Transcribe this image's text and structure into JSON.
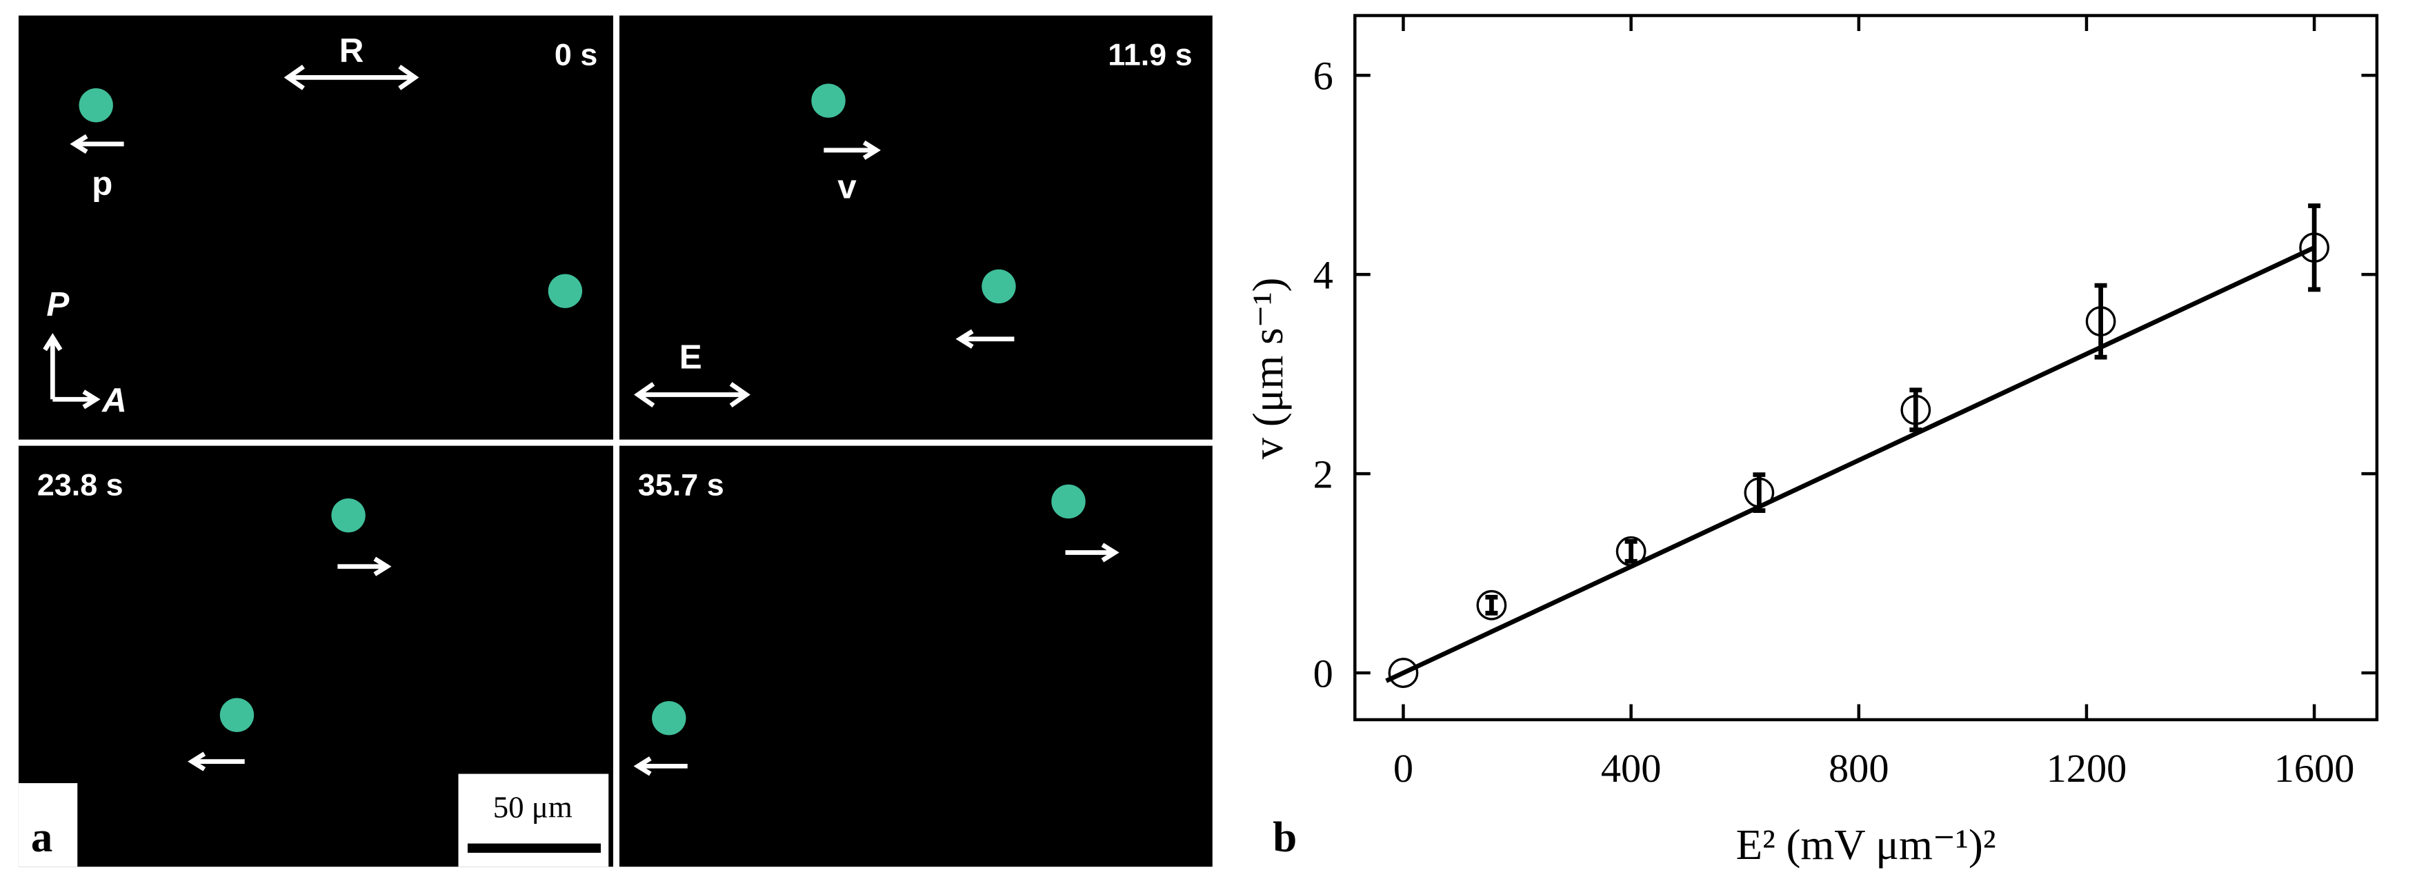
{
  "panel_a": {
    "label": "a",
    "frames": [
      {
        "time": "0 s"
      },
      {
        "time": "11.9 s"
      },
      {
        "time": "23.8 s"
      },
      {
        "time": "35.7 s"
      }
    ],
    "rubbing_label": "R",
    "polarization_label": "p",
    "velocity_label": "v",
    "field_label": "E",
    "polarizer_label": "P",
    "analyzer_label": "A",
    "scale_bar": "50 μm"
  },
  "chart_data": {
    "type": "scatter",
    "panel_label": "b",
    "x_label": "E² (mV μm⁻¹)²",
    "y_label": "v (μm s⁻¹)",
    "x": [
      0,
      155,
      400,
      625,
      900,
      1225,
      1600
    ],
    "values": [
      0,
      0.68,
      1.22,
      1.81,
      2.64,
      3.53,
      4.27
    ],
    "errors": [
      0,
      0.08,
      0.1,
      0.18,
      0.2,
      0.36,
      0.42
    ],
    "fit": {
      "x": [
        -30,
        1600
      ],
      "y": [
        -0.08,
        4.27
      ]
    },
    "color": "#000",
    "xlim": [
      -85,
      1710
    ],
    "ylim": [
      -0.47,
      6.6
    ],
    "xticks": [
      0,
      400,
      800,
      1200,
      1600
    ],
    "yticks": [
      0,
      2,
      4,
      6
    ]
  }
}
